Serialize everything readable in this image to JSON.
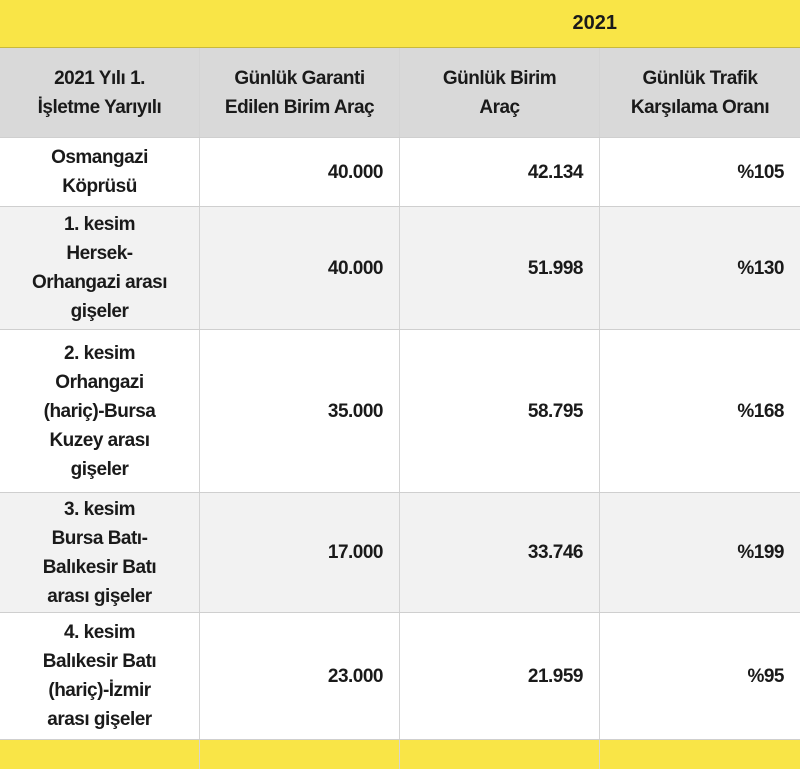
{
  "table": {
    "year": "2021",
    "header": [
      [
        "2021 Yılı 1.",
        "İşletme Yarıyılı"
      ],
      [
        "Günlük Garanti",
        "Edilen Birim Araç"
      ],
      [
        "Günlük Birim",
        "Araç"
      ],
      [
        "Günlük Trafik",
        "Karşılama Oranı"
      ]
    ],
    "rows": [
      [
        [
          "Osmangazi",
          "Köprüsü"
        ],
        "40.000",
        "42.134",
        "%105"
      ],
      [
        [
          "1. kesim",
          "Hersek-",
          "Orhangazi arası",
          "gişeler"
        ],
        "40.000",
        "51.998",
        "%130"
      ],
      [
        [
          "2. kesim",
          "Orhangazi",
          "(hariç)-Bursa",
          "Kuzey arası",
          "gişeler"
        ],
        "35.000",
        "58.795",
        "%168"
      ],
      [
        [
          "3. kesim",
          "Bursa Batı-",
          "Balıkesir Batı",
          "arası gişeler"
        ],
        "17.000",
        "33.746",
        "%199"
      ],
      [
        [
          "4. kesim",
          "Balıkesir Batı",
          "(hariç)-İzmir",
          "arası gişeler"
        ],
        "23.000",
        "21.959",
        "%95"
      ]
    ]
  }
}
